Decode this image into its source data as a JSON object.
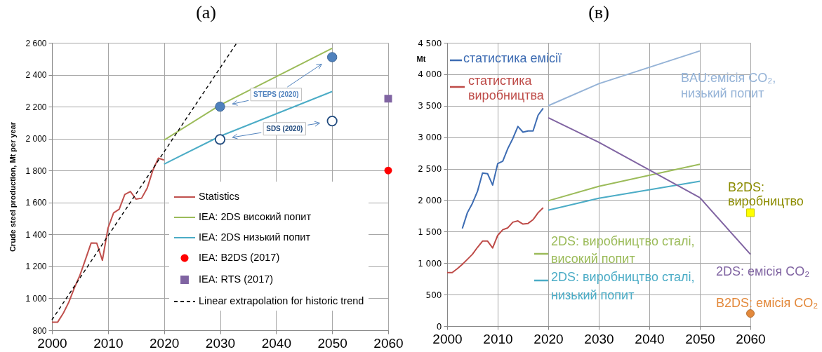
{
  "chart_data": [
    {
      "type": "line",
      "title": "(a)",
      "ylabel": "Crude steel production, Mt per year",
      "xlim": [
        2000,
        2060
      ],
      "xticks": [
        2000,
        2010,
        2020,
        2030,
        2040,
        2050,
        2060
      ],
      "ylim": [
        800,
        2600
      ],
      "yticks": [
        800,
        {
          "value": 1000,
          "label": "1 000"
        },
        {
          "value": 1200,
          "label": "1 200"
        },
        {
          "value": 1400,
          "label": "1 400"
        },
        {
          "value": 1600,
          "label": "1 600"
        },
        {
          "value": 1800,
          "label": "1 800"
        },
        {
          "value": 2000,
          "label": "2 000"
        },
        {
          "value": 2200,
          "label": "2 200"
        },
        {
          "value": 2400,
          "label": "2 400"
        },
        {
          "value": 2600,
          "label": "2 600"
        }
      ],
      "grid": true,
      "legend": "bottom right",
      "series": [
        {
          "name": "Statistics",
          "color": "#c0504d",
          "x": [
            2000,
            2001,
            2002,
            2003,
            2004,
            2005,
            2006,
            2007,
            2008,
            2009,
            2010,
            2011,
            2012,
            2013,
            2014,
            2015,
            2016,
            2017,
            2018,
            2019,
            2020
          ],
          "values": [
            850,
            850,
            905,
            975,
            1065,
            1145,
            1245,
            1347,
            1345,
            1238,
            1440,
            1535,
            1558,
            1650,
            1669,
            1621,
            1627,
            1690,
            1801,
            1878,
            1866
          ]
        },
        {
          "name": "IEA: 2DS високий попит",
          "color": "#9bbb59",
          "x": [
            2020,
            2030,
            2050
          ],
          "values": [
            1990,
            2210,
            2565
          ]
        },
        {
          "name": "IEA: 2DS низький попит",
          "color": "#4bacc6",
          "x": [
            2020,
            2030,
            2050
          ],
          "values": [
            1840,
            2015,
            2295
          ]
        },
        {
          "name": "IEA: B2DS (2017)",
          "type": "scatter",
          "marker": "circle",
          "color": "#ff0000",
          "x": [
            2060
          ],
          "values": [
            1800
          ]
        },
        {
          "name": "IEA: RTS (2017)",
          "type": "scatter",
          "marker": "square",
          "color": "#8064a2",
          "x": [
            2060
          ],
          "values": [
            2250
          ]
        },
        {
          "name": "Linear extrapolation for historic trend",
          "color": "#000000",
          "line_style": "dashed",
          "x": [
            2000,
            2033
          ],
          "values": [
            865,
            2600
          ]
        },
        {
          "name": "STEPS (2020)",
          "type": "scatter",
          "marker": "circle",
          "color": "#4f81bd",
          "x": [
            2030,
            2050
          ],
          "values": [
            2200,
            2510
          ]
        },
        {
          "name": "SDS (2020)",
          "type": "scatter",
          "marker": "circle",
          "color": "#1f497d",
          "x": [
            2030,
            2050
          ],
          "values": [
            1995,
            2110
          ]
        }
      ]
    },
    {
      "type": "line",
      "title": "(в)",
      "ylabel": "Mt",
      "xlim": [
        2000,
        2060
      ],
      "xticks": [
        2000,
        2010,
        2020,
        2030,
        2040,
        2050,
        2060
      ],
      "ylim": [
        0,
        4500
      ],
      "yticks": [
        0,
        500,
        {
          "value": 1000,
          "label": "1 000"
        },
        {
          "value": 1500,
          "label": "1 500"
        },
        {
          "value": 2000,
          "label": "2 000"
        },
        {
          "value": 2500,
          "label": "2 500"
        },
        {
          "value": 3000,
          "label": "3 000"
        },
        {
          "value": 3500,
          "label": "3 500"
        },
        {
          "value": 4000,
          "label": "4 000"
        },
        {
          "value": 4500,
          "label": "4 500"
        }
      ],
      "grid": true,
      "legend": "top left",
      "series": [
        {
          "name": "статистика емісії",
          "color": "#3d6cb3",
          "x": [
            2003,
            2004,
            2005,
            2006,
            2007,
            2008,
            2009,
            2010,
            2011,
            2012,
            2013,
            2014,
            2015,
            2016,
            2017,
            2018,
            2019
          ],
          "values": [
            1550,
            1800,
            1950,
            2140,
            2430,
            2420,
            2240,
            2580,
            2620,
            2820,
            2980,
            3170,
            3080,
            3100,
            3100,
            3350,
            3460
          ]
        },
        {
          "name": "статистика виробництва",
          "color": "#be4b48",
          "x": [
            2000,
            2001,
            2002,
            2003,
            2004,
            2005,
            2006,
            2007,
            2008,
            2009,
            2010,
            2011,
            2012,
            2013,
            2014,
            2015,
            2016,
            2017,
            2018,
            2019
          ],
          "values": [
            850,
            850,
            910,
            980,
            1060,
            1140,
            1250,
            1350,
            1350,
            1240,
            1440,
            1530,
            1560,
            1650,
            1670,
            1620,
            1630,
            1690,
            1800,
            1880
          ]
        },
        {
          "name": "BAU:емісія CO₂, низький попит",
          "color": "#95b3d7",
          "x": [
            2020,
            2030,
            2050
          ],
          "values": [
            3500,
            3850,
            4370
          ]
        },
        {
          "name": "2DS: виробництво сталі, високий попит",
          "color": "#9bbb59",
          "x": [
            2020,
            2030,
            2050
          ],
          "values": [
            1990,
            2220,
            2570
          ]
        },
        {
          "name": "2DS: виробництво сталі, низький попит",
          "color": "#4bacc6",
          "x": [
            2020,
            2030,
            2050
          ],
          "values": [
            1840,
            2030,
            2300
          ]
        },
        {
          "name": "2DS: емісія CO₂",
          "color": "#8064a2",
          "x": [
            2020,
            2030,
            2050,
            2060
          ],
          "values": [
            3310,
            2920,
            2040,
            1140
          ]
        },
        {
          "name": "B2DS: виробництво",
          "type": "scatter",
          "marker": "square",
          "color": "#ffff00",
          "x": [
            2060
          ],
          "values": [
            1800
          ]
        },
        {
          "name": "B2DS: емісія CO₂",
          "type": "scatter",
          "marker": "circle",
          "color": "#e3893c",
          "x": [
            2060
          ],
          "values": [
            200
          ]
        }
      ]
    }
  ]
}
